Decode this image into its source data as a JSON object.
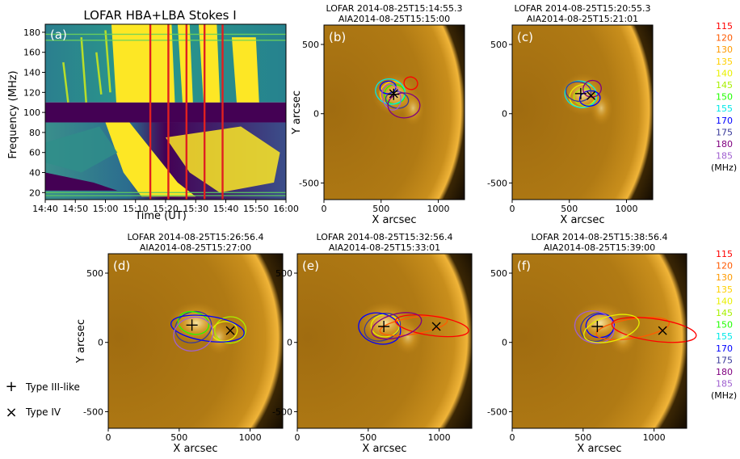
{
  "dynamic_spectrum": {
    "title": "LOFAR HBA+LBA Stokes I",
    "panel_label": "(a)",
    "xlabel": "Time (UT)",
    "ylabel": "Frequency (MHz)",
    "xticks": [
      "14:40",
      "14:50",
      "15:00",
      "15:10",
      "15:20",
      "15:30",
      "15:40",
      "15:50",
      "16:00"
    ],
    "yticks": [
      "20",
      "40",
      "60",
      "80",
      "100",
      "120",
      "140",
      "160",
      "180"
    ],
    "red_lines_ut": [
      "15:14:55",
      "15:20:55",
      "15:26:56",
      "15:32:56",
      "15:38:56"
    ],
    "colors": {
      "low": "#440154",
      "mid": "#21918c",
      "high": "#fde725",
      "marker": "#e02020"
    }
  },
  "image_panels": [
    {
      "label": "(b)",
      "title_lofar": "LOFAR 2014-08-25T15:14:55.3",
      "title_aia": "AIA2014-08-25T15:15:00",
      "show_ylabel": true,
      "show_legend": false
    },
    {
      "label": "(c)",
      "title_lofar": "LOFAR 2014-08-25T15:20:55.3",
      "title_aia": "AIA2014-08-25T15:21:01",
      "show_ylabel": false,
      "show_legend": true
    },
    {
      "label": "(d)",
      "title_lofar": "LOFAR 2014-08-25T15:26:56.4",
      "title_aia": "AIA2014-08-25T15:27:00",
      "show_ylabel": true,
      "show_legend": false
    },
    {
      "label": "(e)",
      "title_lofar": "LOFAR 2014-08-25T15:32:56.4",
      "title_aia": "AIA2014-08-25T15:33:01",
      "show_ylabel": false,
      "show_legend": false
    },
    {
      "label": "(f)",
      "title_lofar": "LOFAR 2014-08-25T15:38:56.4",
      "title_aia": "AIA2014-08-25T15:39:00",
      "show_ylabel": false,
      "show_legend": true
    }
  ],
  "image_axes": {
    "xlabel": "X arcsec",
    "ylabel": "Y arcsec",
    "xticks": [
      "0",
      "500",
      "1000"
    ],
    "yticks": [
      "500",
      "0",
      "-500"
    ]
  },
  "legend": {
    "entries": [
      {
        "freq": "115",
        "color": "#ff0000"
      },
      {
        "freq": "120",
        "color": "#ff5a00"
      },
      {
        "freq": "130",
        "color": "#ff9a00"
      },
      {
        "freq": "135",
        "color": "#ffd000"
      },
      {
        "freq": "140",
        "color": "#e8f000"
      },
      {
        "freq": "145",
        "color": "#a8f000"
      },
      {
        "freq": "150",
        "color": "#20ff00"
      },
      {
        "freq": "155",
        "color": "#00e8e8"
      },
      {
        "freq": "170",
        "color": "#0000ff"
      },
      {
        "freq": "175",
        "color": "#3a3a9a"
      },
      {
        "freq": "180",
        "color": "#800080"
      },
      {
        "freq": "185",
        "color": "#a060d0"
      }
    ],
    "unit": "(MHz)"
  },
  "marker_legend": {
    "type3": {
      "symbol": "+",
      "label": "Type III-like"
    },
    "type4": {
      "symbol": "×",
      "label": "Type IV"
    }
  }
}
